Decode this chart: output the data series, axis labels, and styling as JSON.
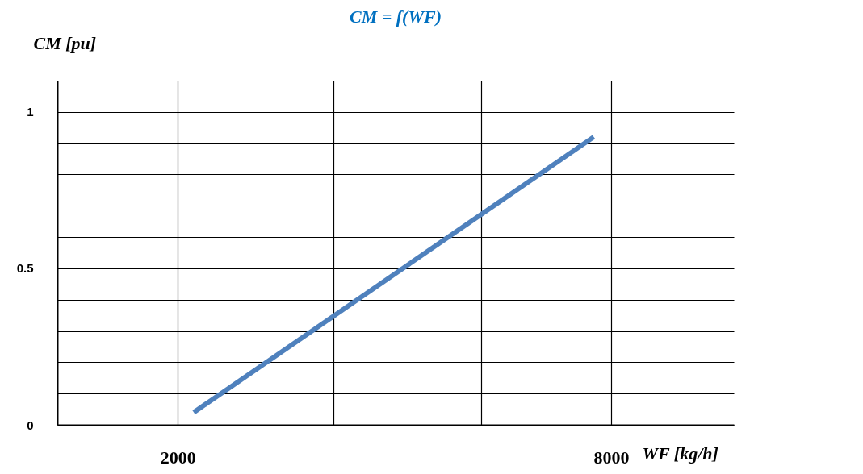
{
  "chart_data": {
    "type": "line",
    "title": "CM = f(WF)",
    "xlabel": "WF [kg/h]",
    "ylabel": "CM [pu]",
    "x": [
      2220,
      7760
    ],
    "series": [
      {
        "color": "#4f81bd",
        "values": [
          0.04,
          0.92
        ]
      }
    ],
    "xlim": [
      330,
      9700
    ],
    "xticks": [
      2000,
      {
        "value": 4150,
        "label": null
      },
      {
        "value": 6200,
        "label": null
      },
      8000
    ],
    "ylim": [
      0,
      1.1
    ],
    "yticks": [
      0,
      {
        "value": 0.1,
        "label": null
      },
      {
        "value": 0.2,
        "label": null
      },
      {
        "value": 0.3,
        "label": null
      },
      {
        "value": 0.4,
        "label": null
      },
      0.5,
      {
        "value": 0.6,
        "label": null
      },
      {
        "value": 0.7,
        "label": null
      },
      {
        "value": 0.8,
        "label": null
      },
      {
        "value": 0.9,
        "label": null
      },
      1
    ],
    "grid": true,
    "marker": "none",
    "line_style": "solid"
  }
}
